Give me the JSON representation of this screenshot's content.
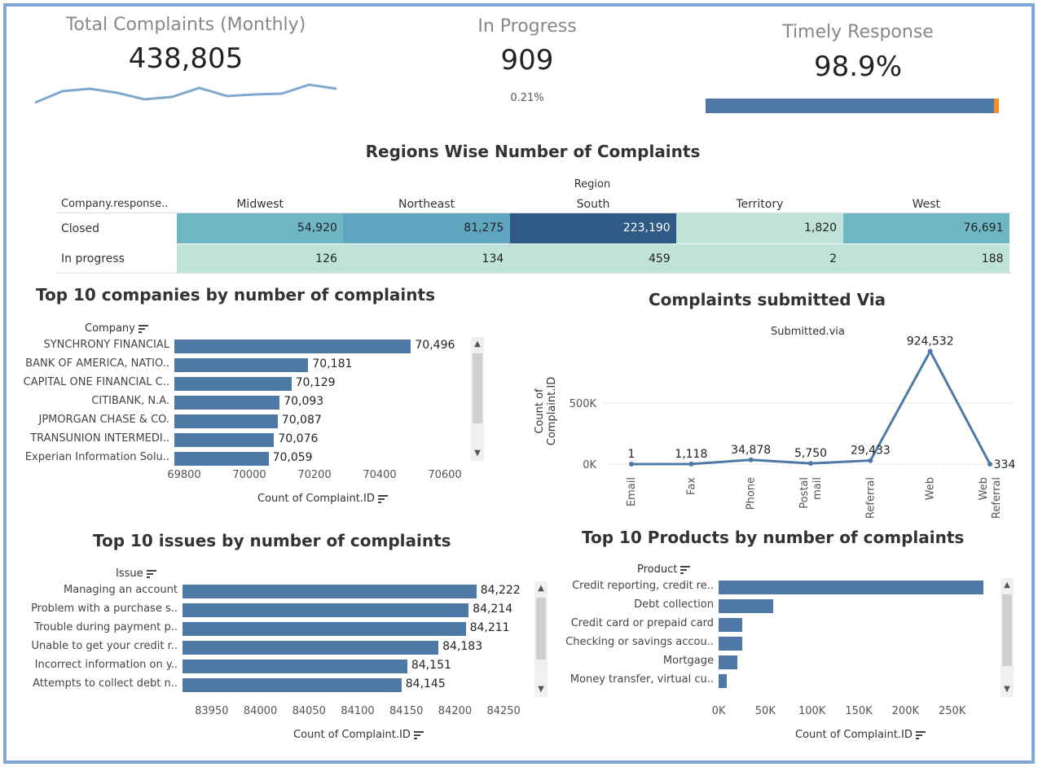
{
  "kpis": {
    "total": {
      "title": "Total Complaints (Monthly)",
      "value": "438,805",
      "trend": [
        78,
        64,
        61,
        66,
        74,
        71,
        60,
        70,
        68,
        67,
        56,
        61
      ]
    },
    "progress": {
      "title": "In Progress",
      "value": "909",
      "sub": "0.21%"
    },
    "timely": {
      "title": "Timely Response",
      "value": "98.9%",
      "fraction": 0.989,
      "bar_color": "#4e79a7",
      "rest_color": "#f28e2b"
    }
  },
  "regions": {
    "title": "Regions Wise Number of Complaints",
    "region_header": "Region",
    "row_header": "Company.response..",
    "columns": [
      "Midwest",
      "Northeast",
      "South",
      "Territory",
      "West"
    ],
    "rows": [
      {
        "label": "Closed",
        "values": [
          "54,920",
          "81,275",
          "223,190",
          "1,820",
          "76,691"
        ],
        "colors": [
          "#6fb6c4",
          "#5ea6c0",
          "#2f5a85",
          "#bfe3d9",
          "#6fb6c4"
        ]
      },
      {
        "label": "In progress",
        "values": [
          "126",
          "134",
          "459",
          "2",
          "188"
        ],
        "colors": [
          "#bfe3d9",
          "#bfe3d9",
          "#bfe3d9",
          "#bfe3d9",
          "#bfe3d9"
        ]
      }
    ]
  },
  "companies": {
    "title": "Top 10 companies by number of complaints",
    "axis_header": "Company",
    "xlabel": "Count of Complaint.ID",
    "chart_data": {
      "type": "bar",
      "categories": [
        "SYNCHRONY FINANCIAL",
        "BANK OF AMERICA, NATIO..",
        "CAPITAL ONE FINANCIAL C..",
        "CITIBANK, N.A.",
        "JPMORGAN CHASE & CO.",
        "TRANSUNION INTERMEDI..",
        "Experian Information Solu.."
      ],
      "values": [
        70496,
        70181,
        70129,
        70093,
        70087,
        70076,
        70059
      ],
      "labels": [
        "70,496",
        "70,181",
        "70,129",
        "70,093",
        "70,087",
        "70,076",
        "70,059"
      ],
      "xlim": [
        69770,
        70680
      ],
      "ticks": [
        "69800",
        "70000",
        "70200",
        "70400",
        "70600"
      ],
      "tick_values": [
        69800,
        70000,
        70200,
        70400,
        70600
      ]
    }
  },
  "via": {
    "title": "Complaints submitted Via",
    "header": "Submitted.via",
    "ylabel": "Count of Complaint.ID",
    "chart_data": {
      "type": "line",
      "categories": [
        "Email",
        "Fax",
        "Phone",
        "Postal mail",
        "Referral",
        "Web",
        "Web Referral"
      ],
      "values": [
        1,
        1118,
        34878,
        5750,
        29433,
        924532,
        334
      ],
      "labels": [
        "1",
        "1,118",
        "34,878",
        "5,750",
        "29,433",
        "924,532",
        "334"
      ],
      "ylim": [
        0,
        1000000
      ],
      "yticks": [
        "0K",
        "500K"
      ],
      "ytick_values": [
        0,
        500000
      ]
    }
  },
  "issues": {
    "title": "Top 10 issues by number of complaints",
    "axis_header": "Issue",
    "xlabel": "Count of Complaint.ID",
    "chart_data": {
      "type": "bar",
      "categories": [
        "Managing an account",
        "Problem with a purchase s..",
        "Trouble during payment p..",
        "Unable to get your credit r..",
        "Incorrect information on y..",
        "Attempts to collect debt n.."
      ],
      "values": [
        84222,
        84214,
        84211,
        84183,
        84151,
        84145
      ],
      "labels": [
        "84,222",
        "84,214",
        "84,211",
        "84,183",
        "84,151",
        "84,145"
      ],
      "xlim": [
        83920,
        84280
      ],
      "ticks": [
        "83950",
        "84000",
        "84050",
        "84100",
        "84150",
        "84200",
        "84250"
      ],
      "tick_values": [
        83950,
        84000,
        84050,
        84100,
        84150,
        84200,
        84250
      ]
    }
  },
  "products": {
    "title": "Top 10 Products by number of complaints",
    "axis_header": "Product",
    "xlabel": "Count of Complaint.ID",
    "chart_data": {
      "type": "bar",
      "categories": [
        "Credit reporting, credit re..",
        "Debt collection",
        "Credit card or prepaid card",
        "Checking or savings accou..",
        "Mortgage",
        "Money transfer, virtual cu.."
      ],
      "values": [
        283000,
        58000,
        25000,
        25000,
        20000,
        9000
      ],
      "xlim": [
        0,
        300000
      ],
      "ticks": [
        "0K",
        "50K",
        "100K",
        "150K",
        "200K",
        "250K"
      ],
      "tick_values": [
        0,
        50000,
        100000,
        150000,
        200000,
        250000
      ]
    }
  }
}
